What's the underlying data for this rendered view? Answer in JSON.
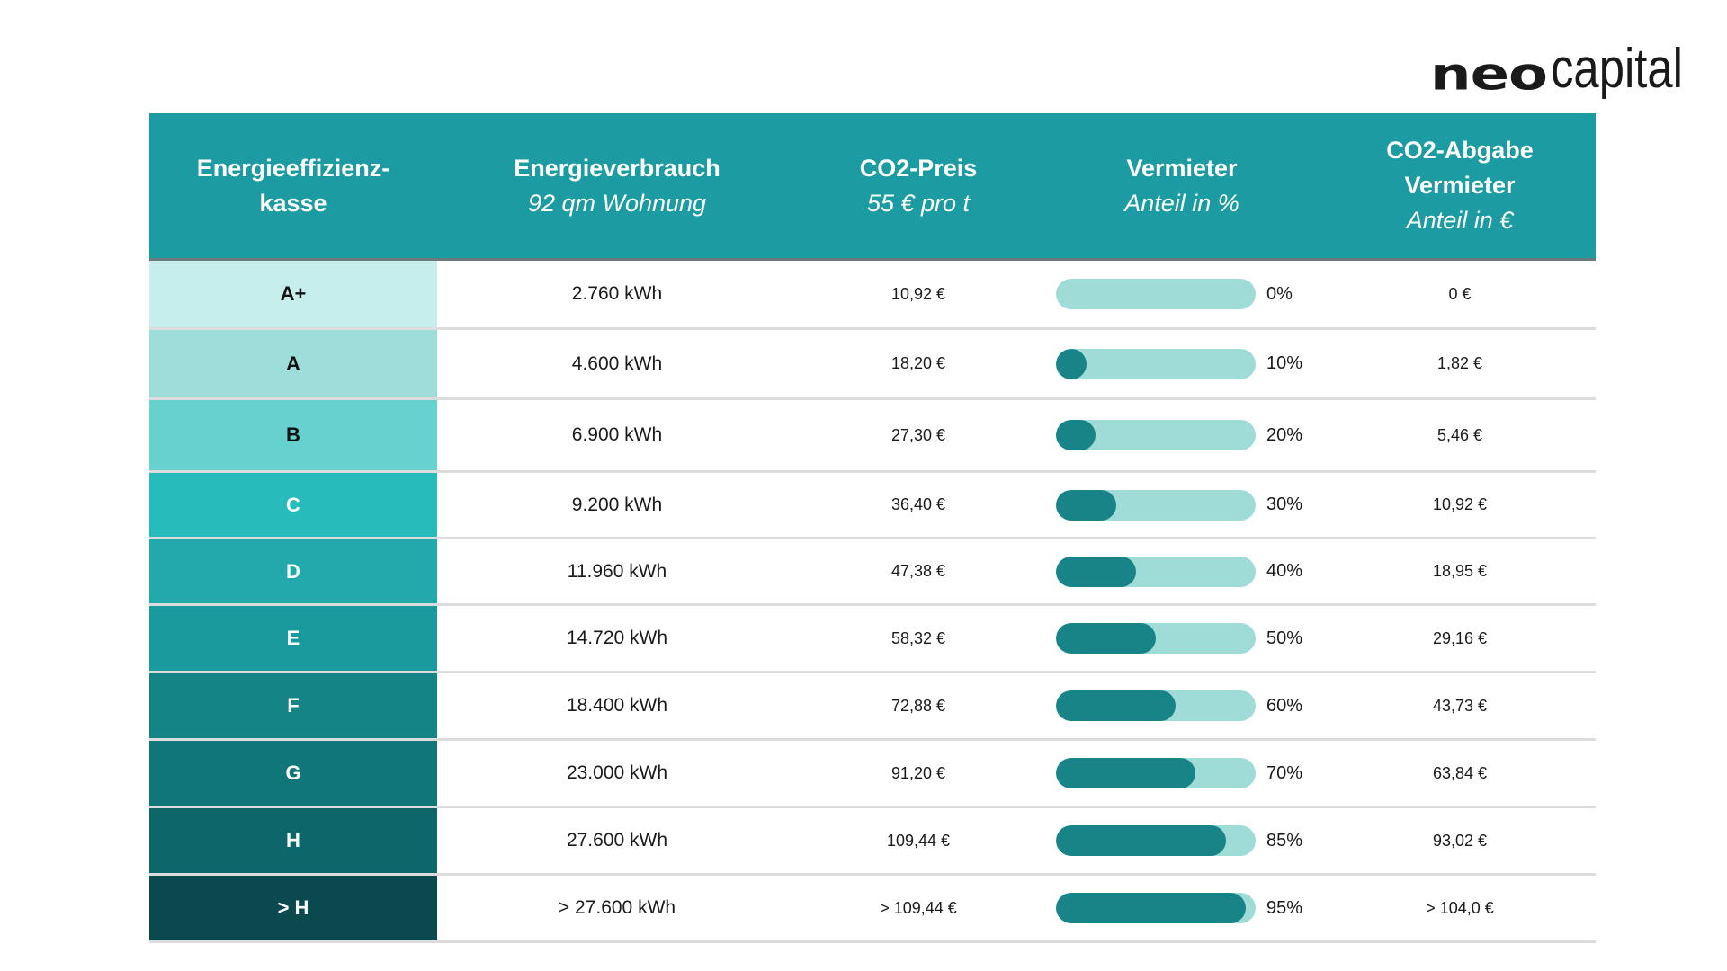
{
  "logo": {
    "part1": "neo",
    "part2": "capital"
  },
  "header": {
    "col1": {
      "line1": "Energieeffizienz-",
      "line2": "kasse"
    },
    "col2": {
      "line1": "Energieverbrauch",
      "line2": "92 qm Wohnung"
    },
    "col3": {
      "line1": "CO2-Preis",
      "line2": "55 € pro t"
    },
    "col4": {
      "line1": "Vermieter",
      "line2": "Anteil in %"
    },
    "col5": {
      "line1": "CO2-Abgabe",
      "line2": "Vermieter",
      "line3": "Anteil in €"
    }
  },
  "chart_data": {
    "type": "table",
    "title": "",
    "columns": [
      "Energieeffizienzkasse",
      "Energieverbrauch 92 qm Wohnung",
      "CO2-Preis 55 € pro t",
      "Vermieter Anteil in %",
      "CO2-Abgabe Vermieter Anteil in €"
    ],
    "rows": [
      {
        "class": "A+",
        "consumption": "2.760 kWh",
        "price": "10,92 €",
        "share": 0,
        "share_label": "0%",
        "levy": "0 €"
      },
      {
        "class": "A",
        "consumption": "4.600 kWh",
        "price": "18,20 €",
        "share": 10,
        "share_label": "10%",
        "levy": "1,82 €"
      },
      {
        "class": "B",
        "consumption": "6.900 kWh",
        "price": "27,30 €",
        "share": 20,
        "share_label": "20%",
        "levy": "5,46 €"
      },
      {
        "class": "C",
        "consumption": "9.200 kWh",
        "price": "36,40 €",
        "share": 30,
        "share_label": "30%",
        "levy": "10,92 €"
      },
      {
        "class": "D",
        "consumption": "11.960 kWh",
        "price": "47,38 €",
        "share": 40,
        "share_label": "40%",
        "levy": "18,95 €"
      },
      {
        "class": "E",
        "consumption": "14.720 kWh",
        "price": "58,32 €",
        "share": 50,
        "share_label": "50%",
        "levy": "29,16 €"
      },
      {
        "class": "F",
        "consumption": "18.400 kWh",
        "price": "72,88 €",
        "share": 60,
        "share_label": "60%",
        "levy": "43,73 €"
      },
      {
        "class": "G",
        "consumption": "23.000 kWh",
        "price": "91,20 €",
        "share": 70,
        "share_label": "70%",
        "levy": "63,84 €"
      },
      {
        "class": "H",
        "consumption": "27.600 kWh",
        "price": "109,44 €",
        "share": 85,
        "share_label": "85%",
        "levy": "93,02 €"
      },
      {
        "class": "> H",
        "consumption": "> 27.600 kWh",
        "price": "> 109,44 €",
        "share": 95,
        "share_label": "95%",
        "levy": "> 104,0 €"
      }
    ],
    "class_colors": [
      "#c5eeec",
      "#9ddedb",
      "#67d1d0",
      "#27bbbc",
      "#22a9ab",
      "#1a9a9c",
      "#148486",
      "#107679",
      "#0d6669",
      "#0a4a4e"
    ],
    "class_text_colors": [
      "#111111",
      "#111111",
      "#111111",
      "#ffffff",
      "#ffffff",
      "#ffffff",
      "#ffffff",
      "#ffffff",
      "#ffffff",
      "#ffffff"
    ],
    "bar_color": "#198488",
    "bar_track_color": "#9fdcd7",
    "header_color": "#1c9ca2"
  }
}
